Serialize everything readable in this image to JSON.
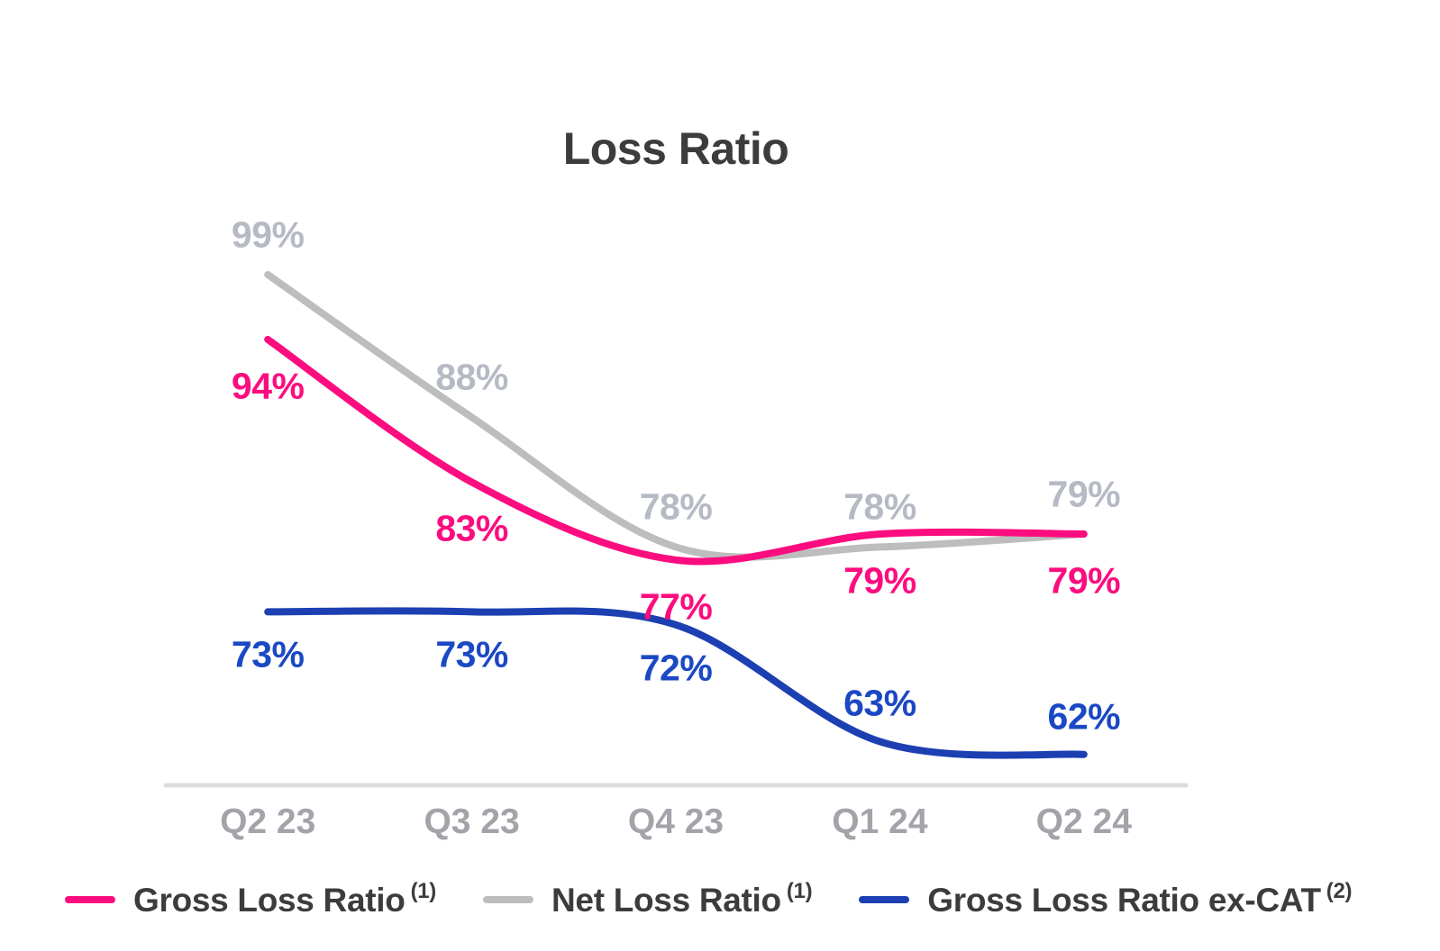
{
  "chart_data": {
    "type": "line",
    "title": "Loss Ratio",
    "x": [
      "Q2 23",
      "Q3 23",
      "Q4 23",
      "Q1 24",
      "Q2 24"
    ],
    "y_unit": "%",
    "series": [
      {
        "name": "Gross Loss Ratio",
        "footnote": "(1)",
        "color": "#FC0D7F",
        "label_color": "#FC0D7F",
        "values": [
          94,
          83,
          77,
          79,
          79
        ],
        "label_positions": [
          "below",
          "below",
          "below",
          "below",
          "below"
        ]
      },
      {
        "name": "Net Loss Ratio",
        "footnote": "(1)",
        "color": "#BDBDBD",
        "label_color": "#B5BAC4",
        "values": [
          99,
          88,
          78,
          78,
          79
        ],
        "label_positions": [
          "above",
          "above",
          "above",
          "above",
          "above"
        ]
      },
      {
        "name": "Gross Loss Ratio ex-CAT",
        "footnote": "(2)",
        "color": "#1C3FB2",
        "label_color": "#1B48C4",
        "values": [
          73,
          73,
          72,
          63,
          62
        ],
        "label_positions": [
          "below",
          "below",
          "below",
          "above",
          "above"
        ]
      }
    ],
    "draw_order": [
      1,
      0,
      2
    ],
    "legend_position": "bottom-left",
    "axis": {
      "baseline_color": "#DCDCDC",
      "tick_label_color": "#A2A4A9",
      "grid": false
    }
  }
}
